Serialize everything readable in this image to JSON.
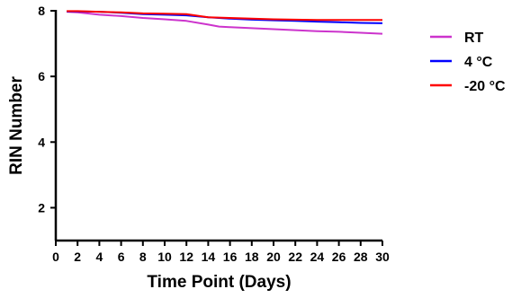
{
  "chart_data": {
    "type": "line",
    "title": "",
    "xlabel": "Time Point (Days)",
    "ylabel": "RIN Number",
    "xlim": [
      0,
      30
    ],
    "ylim": [
      1,
      8
    ],
    "x_ticks": [
      0,
      2,
      4,
      6,
      8,
      10,
      12,
      14,
      16,
      18,
      20,
      22,
      24,
      26,
      28,
      30
    ],
    "y_ticks": [
      2,
      4,
      6,
      8
    ],
    "grid": false,
    "legend_position": "top-right",
    "series": [
      {
        "name": "RT",
        "color": "#cc33cc",
        "x": [
          1,
          2,
          4,
          6,
          8,
          10,
          12,
          14,
          15,
          16,
          18,
          20,
          22,
          24,
          26,
          28,
          30
        ],
        "y": [
          7.97,
          7.95,
          7.88,
          7.84,
          7.78,
          7.74,
          7.69,
          7.58,
          7.52,
          7.5,
          7.47,
          7.44,
          7.41,
          7.38,
          7.36,
          7.33,
          7.3
        ]
      },
      {
        "name": "4 °C",
        "color": "#0000ff",
        "x": [
          1,
          2,
          4,
          6,
          8,
          10,
          12,
          14,
          16,
          18,
          20,
          22,
          24,
          26,
          28,
          30
        ],
        "y": [
          7.98,
          7.98,
          7.97,
          7.94,
          7.9,
          7.88,
          7.86,
          7.8,
          7.76,
          7.73,
          7.71,
          7.69,
          7.67,
          7.65,
          7.63,
          7.62
        ]
      },
      {
        "name": "-20 °C",
        "color": "#ff0000",
        "x": [
          1,
          2,
          4,
          6,
          8,
          10,
          12,
          13,
          14,
          16,
          18,
          20,
          22,
          24,
          26,
          28,
          30
        ],
        "y": [
          7.99,
          7.99,
          7.97,
          7.95,
          7.92,
          7.91,
          7.9,
          7.85,
          7.8,
          7.78,
          7.76,
          7.74,
          7.73,
          7.72,
          7.72,
          7.72,
          7.72
        ]
      }
    ]
  }
}
